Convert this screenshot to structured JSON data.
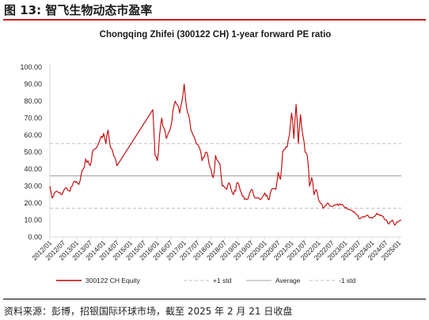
{
  "header": {
    "figure_title": "图 13: 智飞生物动态市盈率"
  },
  "source_note": "资料来源：彭博，招银国际环球市场，截至 2025 年 2 月 21 日收盘",
  "colors": {
    "title_rule": "#c8151d",
    "series": "#c00000",
    "std": "#bfbfbf",
    "average": "#a6a6a6",
    "axis": "#d9d9d9"
  },
  "chart_data": {
    "type": "line",
    "title": "Chongqing Zhifei (300122 CH) 1-year forward PE ratio",
    "xlabel": "",
    "ylabel": "",
    "ylim": [
      0,
      100
    ],
    "xlim": [
      "2012-01",
      "2025-02"
    ],
    "grid": false,
    "legend_position": "bottom",
    "yticks": [
      "100.00",
      "90.00",
      "80.00",
      "70.00",
      "60.00",
      "50.00",
      "40.00",
      "30.00",
      "20.00",
      "10.00",
      "0.00"
    ],
    "xticks": [
      "2012/01",
      "2012/07",
      "2013/01",
      "2013/07",
      "2014/01",
      "2014/07",
      "2015/01",
      "2015/07",
      "2016/01",
      "2016/07",
      "2017/01",
      "2017/07",
      "2018/01",
      "2018/07",
      "2019/01",
      "2019/07",
      "2020/01",
      "2020/07",
      "2021/01",
      "2021/07",
      "2022/01",
      "2022/07",
      "2023/01",
      "2023/07",
      "2024/01",
      "2024/07",
      "2025/01"
    ],
    "series": [
      {
        "name": "300122 CH Equity",
        "style": "solid",
        "x": [
          "2012-01",
          "2012-02",
          "2012-04",
          "2012-06",
          "2012-08",
          "2012-10",
          "2012-12",
          "2013-02",
          "2013-04",
          "2013-05",
          "2013-07",
          "2013-08",
          "2013-10",
          "2013-11",
          "2014-01",
          "2014-02",
          "2014-03",
          "2014-04",
          "2014-06",
          "2014-07",
          "2015-11",
          "2015-12",
          "2016-01",
          "2016-02",
          "2016-03",
          "2016-05",
          "2016-07",
          "2016-09",
          "2016-11",
          "2016-12",
          "2017-01",
          "2017-02",
          "2017-03",
          "2017-04",
          "2017-06",
          "2017-08",
          "2017-09",
          "2017-11",
          "2018-01",
          "2018-02",
          "2018-03",
          "2018-05",
          "2018-06",
          "2018-08",
          "2018-09",
          "2018-11",
          "2019-01",
          "2019-03",
          "2019-05",
          "2019-07",
          "2019-09",
          "2019-11",
          "2020-01",
          "2020-03",
          "2020-04",
          "2020-06",
          "2020-07",
          "2020-08",
          "2020-09",
          "2020-11",
          "2020-12",
          "2021-01",
          "2021-02",
          "2021-03",
          "2021-04",
          "2021-05",
          "2021-06",
          "2021-07",
          "2021-08",
          "2021-09",
          "2021-10",
          "2021-11",
          "2021-12",
          "2022-01",
          "2022-03",
          "2022-05",
          "2022-07",
          "2022-09",
          "2022-11",
          "2023-01",
          "2023-03",
          "2023-05",
          "2023-07",
          "2023-09",
          "2023-11",
          "2024-01",
          "2024-03",
          "2024-05",
          "2024-06",
          "2024-08",
          "2024-10",
          "2024-11",
          "2024-12",
          "2025-02"
        ],
        "values": [
          30,
          23,
          27,
          25,
          29,
          27,
          33,
          31,
          40,
          46,
          42,
          50,
          53,
          56,
          61,
          55,
          63,
          53,
          47,
          42,
          75,
          48,
          45,
          60,
          70,
          58,
          65,
          80,
          73,
          80,
          90,
          77,
          72,
          63,
          57,
          52,
          45,
          50,
          40,
          35,
          48,
          43,
          30,
          28,
          32,
          25,
          32,
          24,
          22,
          28,
          23,
          22,
          26,
          22,
          28,
          28,
          38,
          34,
          50,
          53,
          60,
          73,
          58,
          78,
          55,
          72,
          60,
          50,
          48,
          30,
          35,
          25,
          28,
          22,
          17,
          20,
          18,
          19,
          19,
          17,
          16,
          15,
          11,
          12,
          13,
          11,
          14,
          13,
          12,
          8,
          10,
          7,
          9,
          10
        ]
      },
      {
        "name": "+1 std",
        "style": "dashed",
        "value": 55
      },
      {
        "name": "Average",
        "style": "solid",
        "value": 36
      },
      {
        "name": "-1 std",
        "style": "dashed",
        "value": 17
      }
    ]
  }
}
